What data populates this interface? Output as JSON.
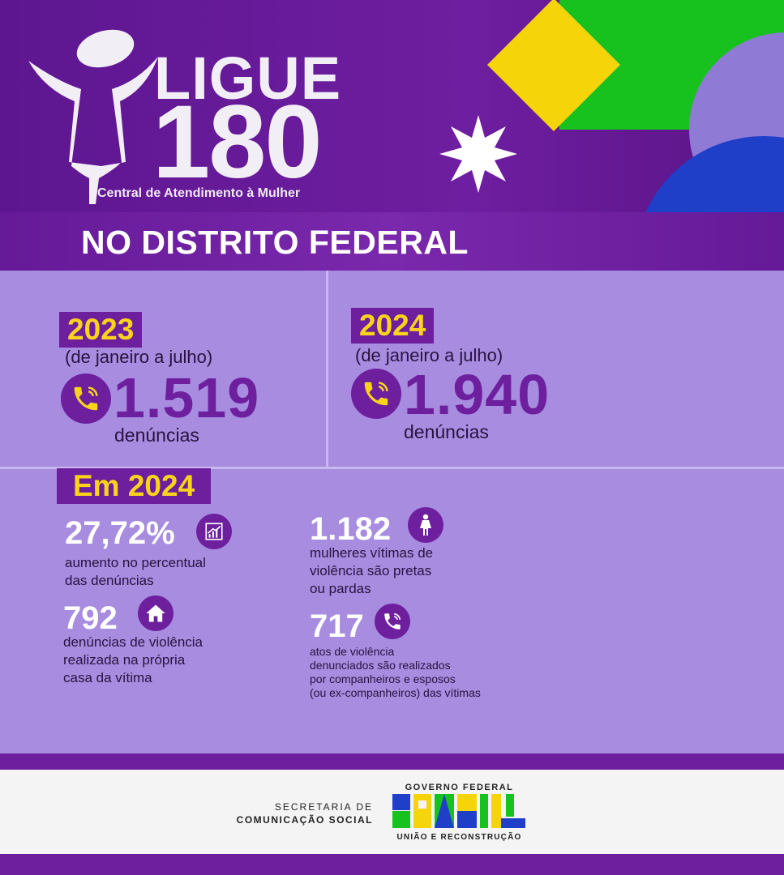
{
  "colors": {
    "purple": "#6d1f9e",
    "yellow": "#f9d41a",
    "lavender": "#a78ce0",
    "green": "#17c21e",
    "blue": "#1f3fc8"
  },
  "logo": {
    "line1": "LIGUE",
    "line2": "180",
    "subtitle": "Central de Atendimento à Mulher"
  },
  "title": "NO DISTRITO FEDERAL",
  "years": [
    {
      "year": "2023",
      "period": "(de janeiro a julho)",
      "count": "1.519",
      "label": "denúncias",
      "icon": "phone-icon"
    },
    {
      "year": "2024",
      "period": "(de janeiro a julho)",
      "count": "1.940",
      "label": "denúncias",
      "icon": "phone-icon"
    }
  ],
  "highlights_title": "Em 2024",
  "stats": [
    {
      "value": "27,72%",
      "icon": "chart-growth-icon",
      "desc1": "aumento no percentual",
      "desc2": "das denúncias"
    },
    {
      "value": "792",
      "icon": "house-icon",
      "desc1": "denúncias de violência",
      "desc2": "realizada na própria",
      "desc3": "casa da vítima"
    },
    {
      "value": "1.182",
      "icon": "woman-icon",
      "desc1": "mulheres vítimas de",
      "desc2": "violência são pretas",
      "desc3": "ou pardas"
    },
    {
      "value": "717",
      "icon": "phone-icon",
      "desc1": "atos de violência",
      "desc2": "denunciados são realizados",
      "desc3": "por companheiros e esposos",
      "desc4": "(ou ex-companheiros) das vítimas"
    }
  ],
  "footer": {
    "secretaria_line1": "SECRETARIA DE",
    "secretaria_line2": "COMUNICAÇÃO SOCIAL",
    "gov_line1": "GOVERNO FEDERAL",
    "gov_logo": "BRASIL",
    "gov_line2": "UNIÃO E RECONSTRUÇÃO"
  }
}
